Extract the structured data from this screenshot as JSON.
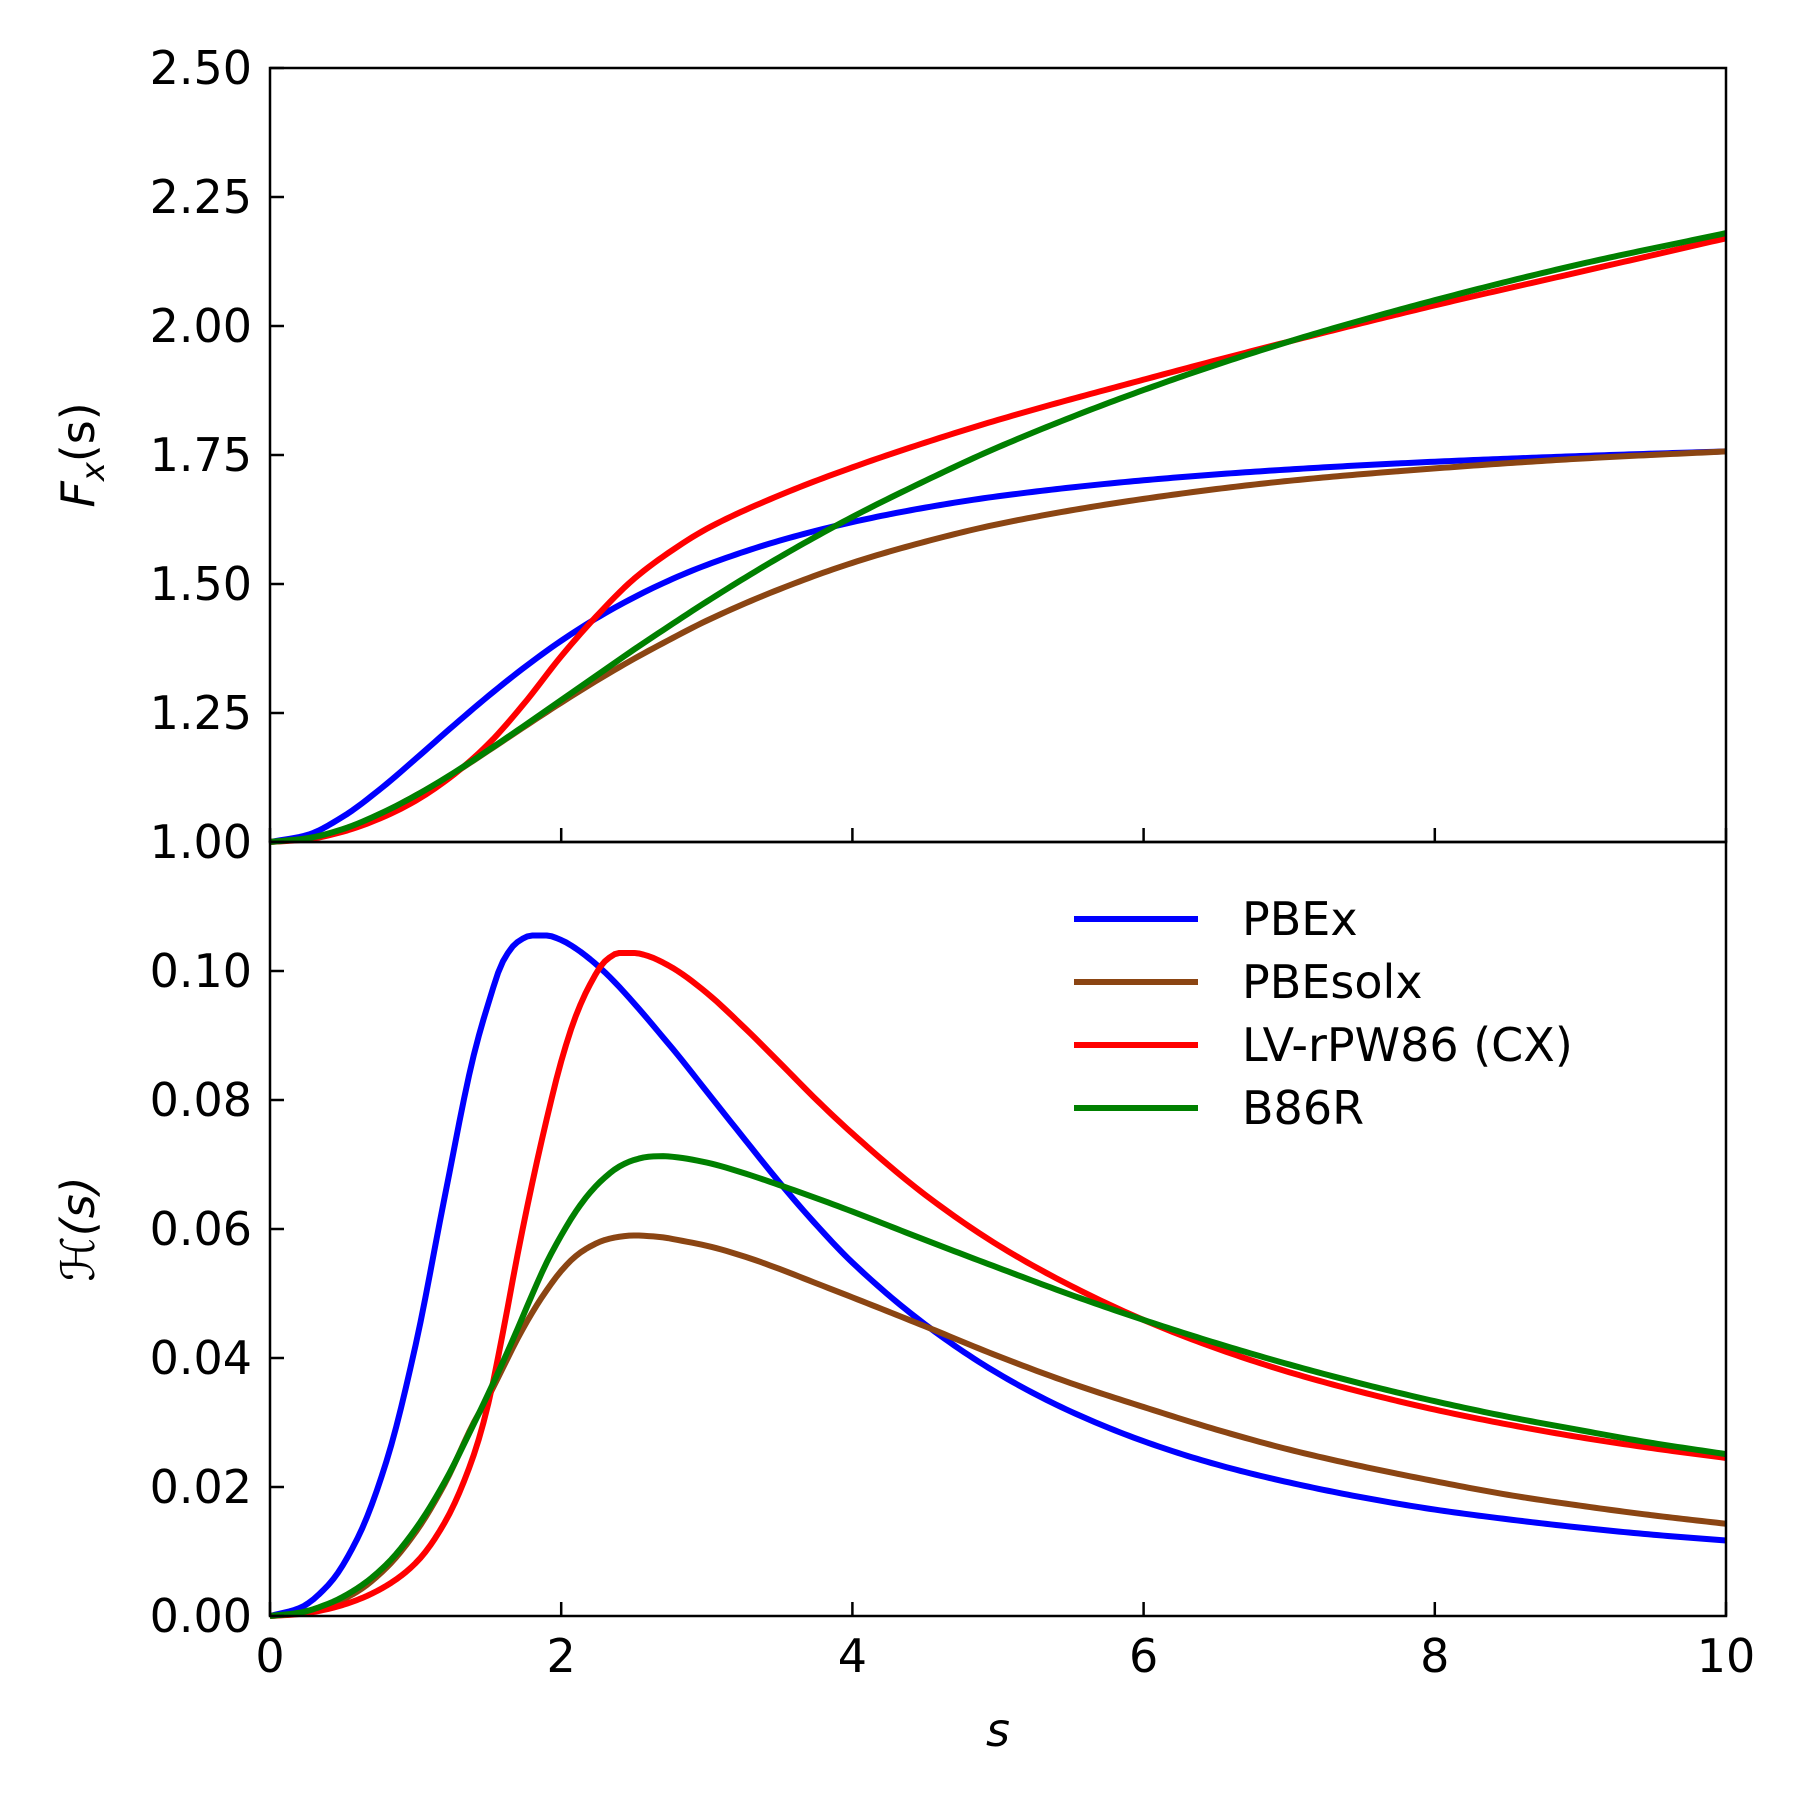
{
  "chart_data": [
    {
      "type": "line",
      "panel": "top",
      "title": "",
      "xlabel": "",
      "ylabel": "F_x(s)",
      "ylabel_parts": {
        "main": "F",
        "sub": "x",
        "rest": "(s)"
      },
      "xlim": [
        0,
        10
      ],
      "ylim": [
        1.0,
        2.5
      ],
      "x_ticks": [
        0,
        2,
        4,
        6,
        8,
        10
      ],
      "y_ticks": [
        1.0,
        1.25,
        1.5,
        1.75,
        2.0,
        2.25,
        2.5
      ],
      "y_tick_labels": [
        "1.00",
        "1.25",
        "1.50",
        "1.75",
        "2.00",
        "2.25",
        "2.50"
      ],
      "grid": false,
      "x": [
        0,
        0.25,
        0.5,
        0.75,
        1.0,
        1.25,
        1.5,
        1.75,
        2.0,
        2.25,
        2.5,
        2.75,
        3.0,
        3.5,
        4.0,
        4.5,
        5.0,
        6.0,
        7.0,
        8.0,
        9.0,
        10.0
      ],
      "series": [
        {
          "name": "PBEx",
          "color": "#0000ff",
          "values": [
            1.0,
            1.013,
            1.049,
            1.101,
            1.161,
            1.223,
            1.283,
            1.339,
            1.39,
            1.435,
            1.474,
            1.508,
            1.537,
            1.584,
            1.62,
            1.648,
            1.67,
            1.701,
            1.722,
            1.737,
            1.748,
            1.757
          ]
        },
        {
          "name": "PBEsolx",
          "color": "#8b4513",
          "values": [
            1.0,
            1.006,
            1.024,
            1.053,
            1.09,
            1.131,
            1.177,
            1.224,
            1.27,
            1.314,
            1.355,
            1.393,
            1.429,
            1.49,
            1.541,
            1.582,
            1.616,
            1.665,
            1.7,
            1.724,
            1.743,
            1.757
          ]
        },
        {
          "name": "LV-rPW86 (CX)",
          "color": "#ff0000",
          "values": [
            1.0,
            1.005,
            1.02,
            1.045,
            1.08,
            1.128,
            1.19,
            1.27,
            1.36,
            1.44,
            1.51,
            1.563,
            1.607,
            1.672,
            1.726,
            1.774,
            1.818,
            1.896,
            1.97,
            2.04,
            2.105,
            2.17
          ]
        },
        {
          "name": "B86R",
          "color": "#008000",
          "values": [
            1.0,
            1.007,
            1.025,
            1.054,
            1.09,
            1.132,
            1.178,
            1.226,
            1.275,
            1.324,
            1.373,
            1.42,
            1.466,
            1.552,
            1.63,
            1.7,
            1.765,
            1.876,
            1.97,
            2.05,
            2.12,
            2.18
          ]
        }
      ]
    },
    {
      "type": "line",
      "panel": "bottom",
      "title": "",
      "xlabel": "s",
      "ylabel": "ℋ(s)",
      "xlim": [
        0,
        10
      ],
      "ylim": [
        0,
        0.12
      ],
      "x_ticks": [
        0,
        2,
        4,
        6,
        8,
        10
      ],
      "x_tick_labels": [
        "0",
        "2",
        "4",
        "6",
        "8",
        "10"
      ],
      "y_ticks": [
        0.0,
        0.02,
        0.04,
        0.06,
        0.08,
        0.1
      ],
      "y_tick_labels": [
        "0.00",
        "0.02",
        "0.04",
        "0.06",
        "0.08",
        "0.10"
      ],
      "grid": false,
      "legend_position": "top-right",
      "x": [
        0,
        0.2,
        0.4,
        0.6,
        0.8,
        1.0,
        1.2,
        1.4,
        1.5,
        1.6,
        1.7,
        1.8,
        1.9,
        2.0,
        2.1,
        2.2,
        2.3,
        2.4,
        2.5,
        2.6,
        2.7,
        2.8,
        3.0,
        3.25,
        3.5,
        3.75,
        4.0,
        4.5,
        5.0,
        5.5,
        6.0,
        6.5,
        7.0,
        7.5,
        8.0,
        8.5,
        9.0,
        9.5,
        10.0
      ],
      "series": [
        {
          "name": "PBEx",
          "color": "#0000ff",
          "values": [
            0.0,
            0.0012,
            0.0048,
            0.012,
            0.024,
            0.042,
            0.065,
            0.087,
            0.095,
            0.1015,
            0.1045,
            0.1055,
            0.1055,
            0.1048,
            0.1035,
            0.1018,
            0.0998,
            0.0975,
            0.095,
            0.0924,
            0.0897,
            0.087,
            0.0813,
            0.0742,
            0.0672,
            0.0607,
            0.0548,
            0.0452,
            0.0376,
            0.0317,
            0.0271,
            0.0235,
            0.0207,
            0.0184,
            0.0165,
            0.015,
            0.0137,
            0.0126,
            0.0117
          ]
        },
        {
          "name": "PBEsolx",
          "color": "#8b4513",
          "values": [
            0.0,
            0.0004,
            0.0016,
            0.0038,
            0.0075,
            0.013,
            0.0205,
            0.03,
            0.034,
            0.0385,
            0.043,
            0.047,
            0.0505,
            0.0535,
            0.0558,
            0.0573,
            0.0583,
            0.0588,
            0.059,
            0.0589,
            0.0587,
            0.0583,
            0.0574,
            0.0558,
            0.0538,
            0.0516,
            0.0494,
            0.0449,
            0.0403,
            0.0361,
            0.0324,
            0.0289,
            0.0258,
            0.0232,
            0.0209,
            0.0188,
            0.0171,
            0.0156,
            0.0143
          ]
        },
        {
          "name": "LV-rPW86 (CX)",
          "color": "#ff0000",
          "values": [
            0.0,
            0.0003,
            0.0011,
            0.0025,
            0.0047,
            0.0082,
            0.0145,
            0.025,
            0.033,
            0.044,
            0.056,
            0.067,
            0.077,
            0.086,
            0.093,
            0.098,
            0.1015,
            0.1028,
            0.1028,
            0.1023,
            0.1013,
            0.1,
            0.0966,
            0.0914,
            0.0858,
            0.0801,
            0.0748,
            0.0653,
            0.0575,
            0.0512,
            0.0459,
            0.0415,
            0.0378,
            0.0347,
            0.032,
            0.0297,
            0.0277,
            0.026,
            0.0245
          ]
        },
        {
          "name": "B86R",
          "color": "#008000",
          "values": [
            0.0,
            0.0005,
            0.0019,
            0.0043,
            0.008,
            0.0135,
            0.0208,
            0.0298,
            0.0345,
            0.0394,
            0.0445,
            0.0498,
            0.0548,
            0.059,
            0.0627,
            0.0657,
            0.068,
            0.0697,
            0.0707,
            0.0712,
            0.0713,
            0.0711,
            0.0703,
            0.0687,
            0.0668,
            0.0648,
            0.0627,
            0.0583,
            0.054,
            0.0498,
            0.0459,
            0.0423,
            0.039,
            0.036,
            0.0333,
            0.0309,
            0.0288,
            0.0268,
            0.0251
          ]
        }
      ]
    }
  ]
}
